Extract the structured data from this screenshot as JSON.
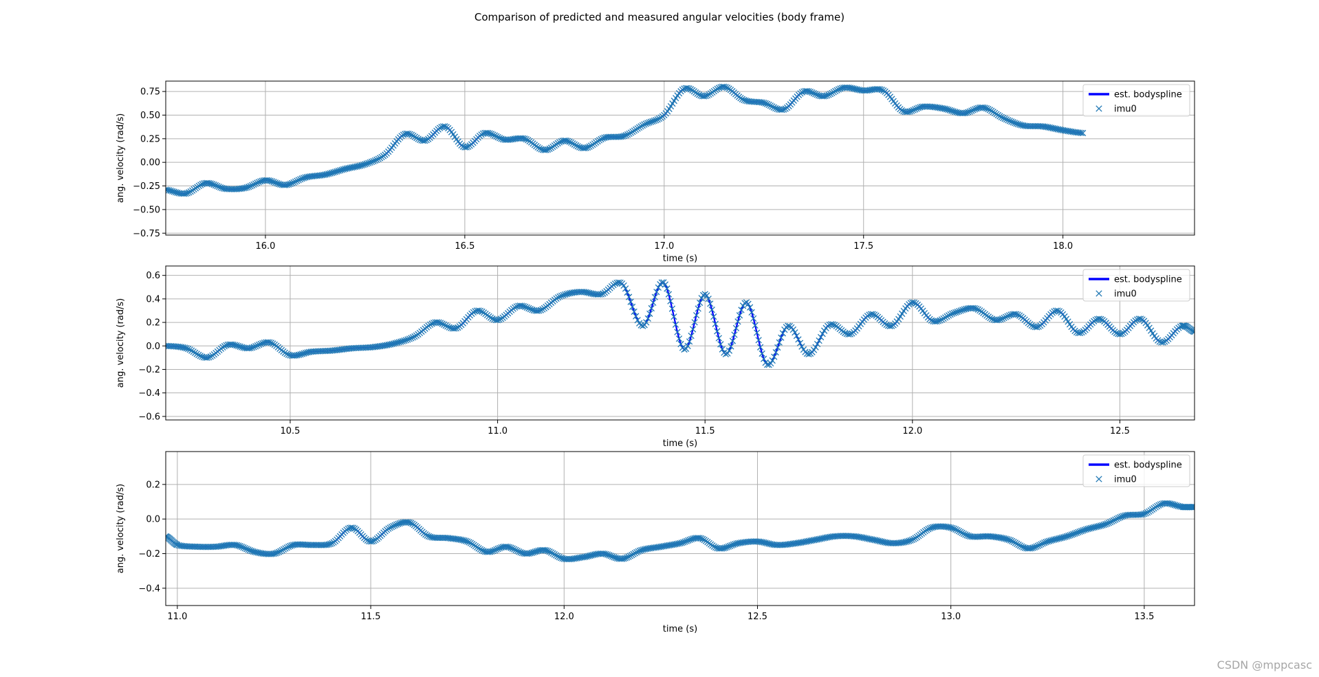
{
  "figure": {
    "title": "Comparison of predicted and measured angular velocities (body frame)",
    "watermark": "CSDN @mppcasc"
  },
  "colors": {
    "line": "#0000ff",
    "marker": "#1f77b4",
    "grid": "#b0b0b0"
  },
  "chart_data": [
    {
      "type": "line",
      "xlabel": "time (s)",
      "ylabel": "ang. velocity (rad/s)",
      "xlim": [
        15.75,
        18.33
      ],
      "ylim": [
        -0.77,
        0.86
      ],
      "xticks": [
        16.0,
        16.5,
        17.0,
        17.5,
        18.0
      ],
      "xtick_labels": [
        "16.0",
        "16.5",
        "17.0",
        "17.5",
        "18.0"
      ],
      "yticks": [
        -0.75,
        -0.5,
        -0.25,
        0.0,
        0.25,
        0.5,
        0.75
      ],
      "ytick_labels": [
        "−0.75",
        "−0.50",
        "−0.25",
        "0.00",
        "0.25",
        "0.50",
        "0.75"
      ],
      "grid": true,
      "legend": "top-right",
      "series": [
        {
          "name": "est. bodyspline",
          "style": "line",
          "color": "#0000ff",
          "x": [
            15.75,
            15.8,
            15.85,
            15.9,
            15.95,
            16.0,
            16.05,
            16.1,
            16.15,
            16.2,
            16.25,
            16.3,
            16.35,
            16.4,
            16.45,
            16.5,
            16.55,
            16.6,
            16.65,
            16.7,
            16.75,
            16.8,
            16.85,
            16.9,
            16.95,
            17.0,
            17.05,
            17.1,
            17.15,
            17.2,
            17.25,
            17.3,
            17.35,
            17.4,
            17.45,
            17.5,
            17.55,
            17.6,
            17.65,
            17.7,
            17.75,
            17.8,
            17.85,
            17.9,
            17.95,
            18.0,
            18.05
          ],
          "y": [
            -0.29,
            -0.33,
            -0.22,
            -0.28,
            -0.27,
            -0.19,
            -0.24,
            -0.16,
            -0.13,
            -0.07,
            -0.02,
            0.08,
            0.3,
            0.23,
            0.38,
            0.16,
            0.31,
            0.24,
            0.25,
            0.13,
            0.23,
            0.15,
            0.26,
            0.28,
            0.4,
            0.5,
            0.78,
            0.7,
            0.8,
            0.66,
            0.63,
            0.56,
            0.75,
            0.7,
            0.79,
            0.76,
            0.76,
            0.54,
            0.59,
            0.57,
            0.52,
            0.58,
            0.47,
            0.39,
            0.38,
            0.34,
            0.31
          ]
        },
        {
          "name": "imu0",
          "style": "marker",
          "color": "#1f77b4",
          "x": [
            15.75,
            15.8,
            15.85,
            15.9,
            15.95,
            16.0,
            16.05,
            16.1,
            16.15,
            16.2,
            16.25,
            16.3,
            16.35,
            16.4,
            16.45,
            16.5,
            16.55,
            16.6,
            16.65,
            16.7,
            16.75,
            16.8,
            16.85,
            16.9,
            16.95,
            17.0,
            17.05,
            17.1,
            17.15,
            17.2,
            17.25,
            17.3,
            17.35,
            17.4,
            17.45,
            17.5,
            17.55,
            17.6,
            17.65,
            17.7,
            17.75,
            17.8,
            17.85,
            17.9,
            17.95,
            18.0,
            18.05
          ],
          "y": [
            -0.29,
            -0.33,
            -0.22,
            -0.28,
            -0.27,
            -0.19,
            -0.24,
            -0.16,
            -0.13,
            -0.07,
            -0.02,
            0.08,
            0.3,
            0.23,
            0.38,
            0.16,
            0.31,
            0.24,
            0.25,
            0.13,
            0.23,
            0.15,
            0.26,
            0.28,
            0.4,
            0.5,
            0.78,
            0.7,
            0.8,
            0.66,
            0.63,
            0.56,
            0.75,
            0.7,
            0.79,
            0.76,
            0.76,
            0.54,
            0.59,
            0.57,
            0.52,
            0.58,
            0.47,
            0.39,
            0.38,
            0.34,
            0.31
          ]
        }
      ]
    },
    {
      "type": "line",
      "xlabel": "time (s)",
      "ylabel": "ang. velocity (rad/s)",
      "xlim": [
        10.2,
        12.68
      ],
      "ylim": [
        -0.63,
        0.68
      ],
      "xticks": [
        10.5,
        11.0,
        11.5,
        12.0,
        12.5
      ],
      "xtick_labels": [
        "10.5",
        "11.0",
        "11.5",
        "12.0",
        "12.5"
      ],
      "yticks": [
        -0.6,
        -0.4,
        -0.2,
        0.0,
        0.2,
        0.4,
        0.6
      ],
      "ytick_labels": [
        "−0.6",
        "−0.4",
        "−0.2",
        "0.0",
        "0.2",
        "0.4",
        "0.6"
      ],
      "grid": true,
      "legend": "top-right",
      "series": [
        {
          "name": "est. bodyspline",
          "style": "line",
          "color": "#0000ff",
          "x": [
            10.2,
            10.25,
            10.3,
            10.35,
            10.4,
            10.45,
            10.5,
            10.55,
            10.6,
            10.65,
            10.7,
            10.75,
            10.8,
            10.85,
            10.9,
            10.95,
            11.0,
            11.05,
            11.1,
            11.15,
            11.2,
            11.25,
            11.3,
            11.35,
            11.4,
            11.45,
            11.5,
            11.55,
            11.6,
            11.65,
            11.7,
            11.75,
            11.8,
            11.85,
            11.9,
            11.95,
            12.0,
            12.05,
            12.1,
            12.15,
            12.2,
            12.25,
            12.3,
            12.35,
            12.4,
            12.45,
            12.5,
            12.55,
            12.6,
            12.65,
            12.68
          ],
          "y": [
            0.0,
            -0.02,
            -0.1,
            0.01,
            -0.02,
            0.03,
            -0.08,
            -0.05,
            -0.04,
            -0.02,
            -0.01,
            0.02,
            0.08,
            0.2,
            0.15,
            0.3,
            0.22,
            0.34,
            0.3,
            0.42,
            0.46,
            0.44,
            0.53,
            0.17,
            0.54,
            -0.03,
            0.44,
            -0.07,
            0.37,
            -0.16,
            0.17,
            -0.07,
            0.18,
            0.1,
            0.27,
            0.17,
            0.37,
            0.21,
            0.28,
            0.32,
            0.22,
            0.27,
            0.16,
            0.3,
            0.11,
            0.23,
            0.1,
            0.23,
            0.03,
            0.17,
            0.12
          ]
        },
        {
          "name": "imu0",
          "style": "marker",
          "color": "#1f77b4",
          "x": [
            10.2,
            10.25,
            10.3,
            10.35,
            10.4,
            10.45,
            10.5,
            10.55,
            10.6,
            10.65,
            10.7,
            10.75,
            10.8,
            10.85,
            10.9,
            10.95,
            11.0,
            11.05,
            11.1,
            11.15,
            11.2,
            11.25,
            11.3,
            11.35,
            11.4,
            11.45,
            11.5,
            11.55,
            11.6,
            11.65,
            11.7,
            11.75,
            11.8,
            11.85,
            11.9,
            11.95,
            12.0,
            12.05,
            12.1,
            12.15,
            12.2,
            12.25,
            12.3,
            12.35,
            12.4,
            12.45,
            12.5,
            12.55,
            12.6,
            12.65,
            12.68
          ],
          "y": [
            0.0,
            -0.02,
            -0.1,
            0.01,
            -0.02,
            0.03,
            -0.08,
            -0.05,
            -0.04,
            -0.02,
            -0.01,
            0.02,
            0.08,
            0.2,
            0.15,
            0.3,
            0.22,
            0.34,
            0.3,
            0.42,
            0.46,
            0.44,
            0.53,
            0.17,
            0.54,
            -0.03,
            0.44,
            -0.07,
            0.37,
            -0.16,
            0.17,
            -0.07,
            0.18,
            0.1,
            0.27,
            0.17,
            0.37,
            0.21,
            0.28,
            0.32,
            0.22,
            0.27,
            0.16,
            0.3,
            0.11,
            0.23,
            0.1,
            0.23,
            0.03,
            0.17,
            0.12
          ]
        }
      ]
    },
    {
      "type": "line",
      "xlabel": "time (s)",
      "ylabel": "ang. velocity (rad/s)",
      "xlim": [
        10.97,
        13.63
      ],
      "ylim": [
        -0.5,
        0.39
      ],
      "xticks": [
        11.0,
        11.5,
        12.0,
        12.5,
        13.0,
        13.5
      ],
      "xtick_labels": [
        "11.0",
        "11.5",
        "12.0",
        "12.5",
        "13.0",
        "13.5"
      ],
      "yticks": [
        -0.4,
        -0.2,
        0.0,
        0.2
      ],
      "ytick_labels": [
        "−0.4",
        "−0.2",
        "0.0",
        "0.2"
      ],
      "grid": true,
      "legend": "top-right",
      "series": [
        {
          "name": "est. bodyspline",
          "style": "line",
          "color": "#0000ff",
          "x": [
            10.97,
            11.0,
            11.05,
            11.1,
            11.15,
            11.2,
            11.25,
            11.3,
            11.35,
            11.4,
            11.45,
            11.5,
            11.55,
            11.6,
            11.65,
            11.7,
            11.75,
            11.8,
            11.85,
            11.9,
            11.95,
            12.0,
            12.05,
            12.1,
            12.15,
            12.2,
            12.25,
            12.3,
            12.35,
            12.4,
            12.45,
            12.5,
            12.55,
            12.6,
            12.65,
            12.7,
            12.75,
            12.8,
            12.85,
            12.9,
            12.95,
            13.0,
            13.05,
            13.1,
            13.15,
            13.2,
            13.25,
            13.3,
            13.35,
            13.4,
            13.45,
            13.5,
            13.55,
            13.6,
            13.63
          ],
          "y": [
            -0.1,
            -0.15,
            -0.16,
            -0.16,
            -0.15,
            -0.19,
            -0.2,
            -0.15,
            -0.15,
            -0.14,
            -0.05,
            -0.13,
            -0.05,
            -0.02,
            -0.1,
            -0.11,
            -0.13,
            -0.19,
            -0.16,
            -0.2,
            -0.18,
            -0.23,
            -0.22,
            -0.2,
            -0.23,
            -0.18,
            -0.16,
            -0.14,
            -0.11,
            -0.17,
            -0.14,
            -0.13,
            -0.15,
            -0.14,
            -0.12,
            -0.1,
            -0.1,
            -0.12,
            -0.14,
            -0.12,
            -0.05,
            -0.05,
            -0.1,
            -0.1,
            -0.12,
            -0.17,
            -0.13,
            -0.1,
            -0.06,
            -0.03,
            0.02,
            0.03,
            0.09,
            0.07,
            0.07
          ]
        },
        {
          "name": "imu0",
          "style": "marker",
          "color": "#1f77b4",
          "x": [
            10.97,
            11.0,
            11.05,
            11.1,
            11.15,
            11.2,
            11.25,
            11.3,
            11.35,
            11.4,
            11.45,
            11.5,
            11.55,
            11.6,
            11.65,
            11.7,
            11.75,
            11.8,
            11.85,
            11.9,
            11.95,
            12.0,
            12.05,
            12.1,
            12.15,
            12.2,
            12.25,
            12.3,
            12.35,
            12.4,
            12.45,
            12.5,
            12.55,
            12.6,
            12.65,
            12.7,
            12.75,
            12.8,
            12.85,
            12.9,
            12.95,
            13.0,
            13.05,
            13.1,
            13.15,
            13.2,
            13.25,
            13.3,
            13.35,
            13.4,
            13.45,
            13.5,
            13.55,
            13.6,
            13.63
          ],
          "y": [
            -0.1,
            -0.15,
            -0.16,
            -0.16,
            -0.15,
            -0.19,
            -0.2,
            -0.15,
            -0.15,
            -0.14,
            -0.05,
            -0.13,
            -0.05,
            -0.02,
            -0.1,
            -0.11,
            -0.13,
            -0.19,
            -0.16,
            -0.2,
            -0.18,
            -0.23,
            -0.22,
            -0.2,
            -0.23,
            -0.18,
            -0.16,
            -0.14,
            -0.11,
            -0.17,
            -0.14,
            -0.13,
            -0.15,
            -0.14,
            -0.12,
            -0.1,
            -0.1,
            -0.12,
            -0.14,
            -0.12,
            -0.05,
            -0.05,
            -0.1,
            -0.1,
            -0.12,
            -0.17,
            -0.13,
            -0.1,
            -0.06,
            -0.03,
            0.02,
            0.03,
            0.09,
            0.07,
            0.07
          ]
        }
      ]
    }
  ]
}
